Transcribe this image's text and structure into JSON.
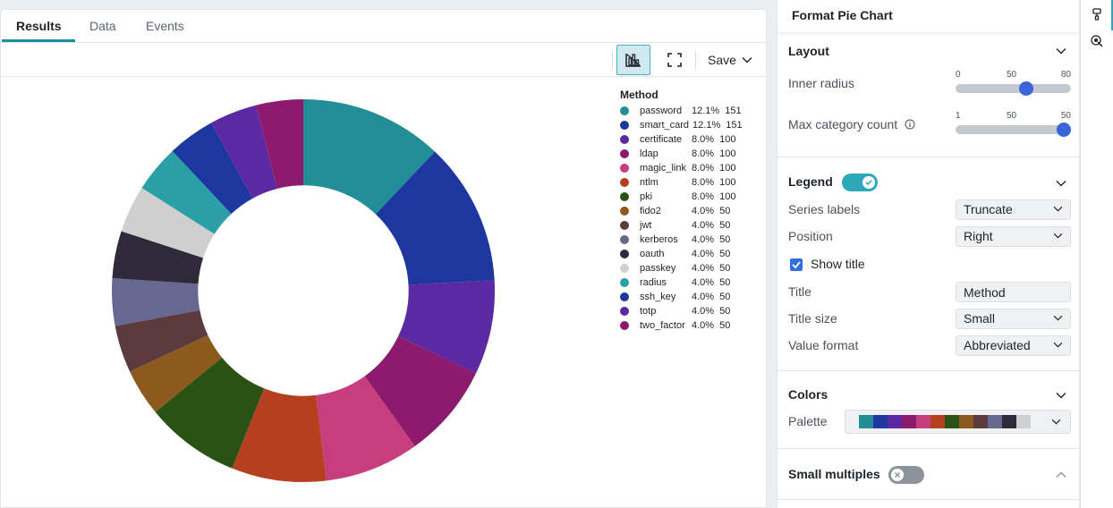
{
  "tabs": [
    {
      "label": "Results"
    },
    {
      "label": "Data"
    },
    {
      "label": "Events"
    }
  ],
  "toolbar": {
    "save_label": "Save",
    "viz_icon": "chart-settings-icon",
    "expand_icon": "fullscreen-icon"
  },
  "chart_data": {
    "type": "pie",
    "inner_radius": 50,
    "legend_title": "Method",
    "legend_position": "right",
    "categories": [
      "password",
      "smart_card",
      "certificate",
      "ldap",
      "magic_link",
      "ntlm",
      "pki",
      "fido2",
      "jwt",
      "kerberos",
      "oauth",
      "passkey",
      "radius",
      "ssh_key",
      "totp",
      "two_factor"
    ],
    "values": [
      151,
      151,
      100,
      100,
      100,
      100,
      100,
      50,
      50,
      50,
      50,
      50,
      50,
      50,
      50,
      50
    ],
    "percents": [
      "12.1%",
      "12.1%",
      "8.0%",
      "8.0%",
      "8.0%",
      "8.0%",
      "8.0%",
      "4.0%",
      "4.0%",
      "4.0%",
      "4.0%",
      "4.0%",
      "4.0%",
      "4.0%",
      "4.0%",
      "4.0%"
    ],
    "value_labels": [
      "151",
      "151",
      "100",
      "100",
      "100",
      "100",
      "100",
      "50",
      "50",
      "50",
      "50",
      "50",
      "50",
      "50",
      "50",
      "50"
    ],
    "colors": [
      "#218e95",
      "#1d36a0",
      "#5b2aa3",
      "#8c1b6e",
      "#c63e7e",
      "#b5401f",
      "#2b5215",
      "#8b5a1c",
      "#5c3b3e",
      "#66688f",
      "#2f2a3a",
      "#cfcfd0",
      "#2aa0a6",
      "#1d36a0",
      "#5b2aa3",
      "#8c1b6e"
    ]
  },
  "format_panel": {
    "title": "Format Pie Chart",
    "layout": {
      "title": "Layout",
      "inner_radius_label": "Inner radius",
      "inner_radius_ticks": [
        "0",
        "50",
        "80"
      ],
      "inner_radius_min": 0,
      "inner_radius_max": 80,
      "inner_radius_value": 50,
      "max_category_label": "Max category count",
      "max_category_ticks": [
        "1",
        "50",
        "50"
      ],
      "max_category_fraction": 1.0
    },
    "legend": {
      "title": "Legend",
      "enabled": true,
      "series_labels_label": "Series labels",
      "series_labels_value": "Truncate",
      "position_label": "Position",
      "position_value": "Right",
      "show_title_label": "Show title",
      "show_title_checked": true,
      "title_label": "Title",
      "title_value": "Method",
      "title_size_label": "Title size",
      "title_size_value": "Small",
      "value_format_label": "Value format",
      "value_format_value": "Abbreviated"
    },
    "colors": {
      "title": "Colors",
      "palette_label": "Palette",
      "palette": [
        "#218e95",
        "#1d36a0",
        "#5b2aa3",
        "#8c1b6e",
        "#c63e7e",
        "#b5401f",
        "#2b5215",
        "#8b5a1c",
        "#5c3b3e",
        "#66688f",
        "#2f2a3a",
        "#cfcfd0"
      ]
    },
    "small_multiples": {
      "title": "Small multiples",
      "enabled": false
    }
  },
  "icon_rail": {
    "icons": [
      "format-brush-icon",
      "drilldown-icon"
    ]
  }
}
